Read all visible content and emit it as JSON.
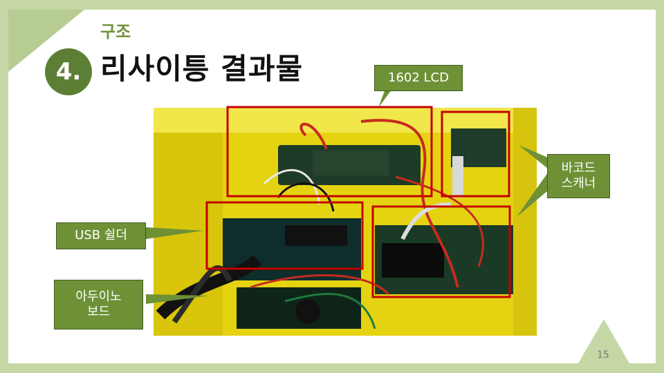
{
  "section": {
    "number": "4.",
    "kicker": "구조",
    "title": "리사이틍 결과물"
  },
  "labels": {
    "lcd": "1602 LCD",
    "usb_shield": "USB 쉴더",
    "arduino": "아두이노\n보드",
    "barcode": "바코드\n스캐너"
  },
  "page_number": "15",
  "colors": {
    "accent_dark": "#5d7f35",
    "accent": "#6e9136",
    "frame": "#c5d7a4",
    "highlight_box": "#c40000",
    "photo_bg": "#f2e21a"
  }
}
